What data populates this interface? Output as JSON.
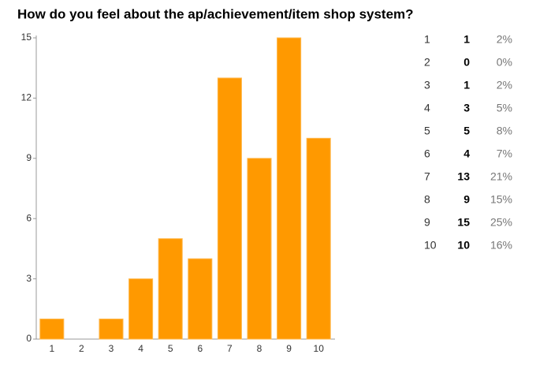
{
  "chart_data": {
    "type": "bar",
    "title": "How do you feel about the ap/achievement/item shop system?",
    "categories": [
      "1",
      "2",
      "3",
      "4",
      "5",
      "6",
      "7",
      "8",
      "9",
      "10"
    ],
    "values": [
      1,
      0,
      1,
      3,
      5,
      4,
      13,
      9,
      15,
      10
    ],
    "shares": [
      {
        "value": 2,
        "label": "2%"
      },
      {
        "value": 0,
        "label": "0%"
      },
      {
        "value": 2,
        "label": "2%"
      },
      {
        "value": 5,
        "label": "5%"
      },
      {
        "value": 8,
        "label": "8%"
      },
      {
        "value": 7,
        "label": "7%"
      },
      {
        "value": 21,
        "label": "21%"
      },
      {
        "value": 15,
        "label": "15%"
      },
      {
        "value": 25,
        "label": "25%"
      },
      {
        "value": 16,
        "label": "16%"
      }
    ],
    "color": "#ff9900",
    "ylim": [
      0,
      15
    ],
    "yticks": [
      0,
      3,
      6,
      9,
      12,
      15
    ],
    "grid": false
  }
}
